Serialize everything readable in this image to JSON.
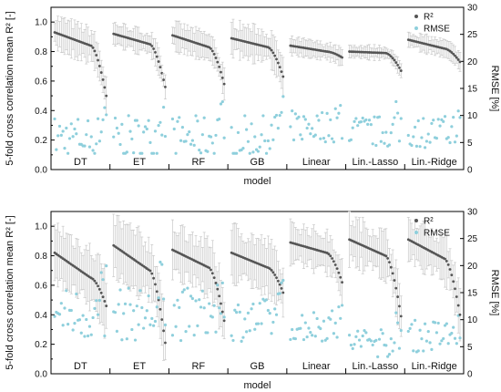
{
  "chart_data": [
    {
      "type": "scatter",
      "panel": "top",
      "xlabel": "model",
      "ylabel_left": "5-fold cross correlation mean R² [-]",
      "ylabel_right": "RMSE [%]",
      "ylim_left": [
        0,
        1.1
      ],
      "ylim_right": [
        0,
        30
      ],
      "yticks_left": [
        "0.0",
        "0.2",
        "0.4",
        "0.6",
        "0.8",
        "1.0"
      ],
      "yticks_right": [
        "0",
        "5",
        "10",
        "15",
        "20",
        "25",
        "30"
      ],
      "categories": [
        "DT",
        "ET",
        "RF",
        "GB",
        "Linear",
        "Lin.-Lasso",
        "Lin.-Ridge"
      ],
      "legend": [
        {
          "name": "R²",
          "color": "#555555"
        },
        {
          "name": "RMSE",
          "color": "#8ecfdc"
        }
      ],
      "legend_position": "top-right",
      "groups": [
        {
          "label": "DT",
          "r2_start": 0.93,
          "r2_mid": 0.84,
          "r2_end": 0.5,
          "err": 0.1,
          "rmse_mid": 6,
          "rmse_spread": 4
        },
        {
          "label": "ET",
          "r2_start": 0.92,
          "r2_mid": 0.85,
          "r2_end": 0.56,
          "err": 0.07,
          "rmse_mid": 6,
          "rmse_spread": 4
        },
        {
          "label": "RF",
          "r2_start": 0.91,
          "r2_mid": 0.83,
          "r2_end": 0.58,
          "err": 0.08,
          "rmse_mid": 6,
          "rmse_spread": 4
        },
        {
          "label": "GB",
          "r2_start": 0.89,
          "r2_mid": 0.83,
          "r2_end": 0.63,
          "err": 0.1,
          "rmse_mid": 6,
          "rmse_spread": 4
        },
        {
          "label": "Linear",
          "r2_start": 0.84,
          "r2_mid": 0.8,
          "r2_end": 0.76,
          "err": 0.05,
          "rmse_mid": 8,
          "rmse_spread": 3
        },
        {
          "label": "Lin.-Lasso",
          "r2_start": 0.8,
          "r2_mid": 0.79,
          "r2_end": 0.67,
          "err": 0.04,
          "rmse_mid": 7,
          "rmse_spread": 3
        },
        {
          "label": "Lin.-Ridge",
          "r2_start": 0.88,
          "r2_mid": 0.82,
          "r2_end": 0.73,
          "err": 0.05,
          "rmse_mid": 7,
          "rmse_spread": 3
        }
      ]
    },
    {
      "type": "scatter",
      "panel": "bottom",
      "xlabel": "model",
      "ylabel_left": "5-fold cross correlation mean R² [-]",
      "ylabel_right": "RMSE [%]",
      "ylim_left": [
        0,
        1.1
      ],
      "ylim_right": [
        0,
        30
      ],
      "yticks_left": [
        "0.0",
        "0.2",
        "0.4",
        "0.6",
        "0.8",
        "1.0"
      ],
      "yticks_right": [
        "0",
        "5",
        "10",
        "15",
        "20",
        "25",
        "30"
      ],
      "categories": [
        "DT",
        "ET",
        "RF",
        "GB",
        "Linear",
        "Lin.-Lasso",
        "Lin.-Ridge"
      ],
      "legend": [
        {
          "name": "R²",
          "color": "#555555"
        },
        {
          "name": "RMSE",
          "color": "#8ecfdc"
        }
      ],
      "legend_position": "top-right",
      "groups": [
        {
          "label": "DT",
          "r2_start": 0.82,
          "r2_mid": 0.65,
          "r2_end": 0.46,
          "err": 0.18,
          "rmse_mid": 11,
          "rmse_spread": 5
        },
        {
          "label": "ET",
          "r2_start": 0.87,
          "r2_mid": 0.7,
          "r2_end": 0.21,
          "err": 0.18,
          "rmse_mid": 11,
          "rmse_spread": 5
        },
        {
          "label": "RF",
          "r2_start": 0.84,
          "r2_mid": 0.72,
          "r2_end": 0.36,
          "err": 0.16,
          "rmse_mid": 11,
          "rmse_spread": 5
        },
        {
          "label": "GB",
          "r2_start": 0.82,
          "r2_mid": 0.72,
          "r2_end": 0.55,
          "err": 0.16,
          "rmse_mid": 10,
          "rmse_spread": 4
        },
        {
          "label": "Linear",
          "r2_start": 0.89,
          "r2_mid": 0.82,
          "r2_end": 0.62,
          "err": 0.12,
          "rmse_mid": 9,
          "rmse_spread": 3
        },
        {
          "label": "Lin.-Lasso",
          "r2_start": 0.91,
          "r2_mid": 0.8,
          "r2_end": 0.39,
          "err": 0.14,
          "rmse_mid": 6,
          "rmse_spread": 3
        },
        {
          "label": "Lin.-Ridge",
          "r2_start": 0.91,
          "r2_mid": 0.78,
          "r2_end": 0.4,
          "err": 0.14,
          "rmse_mid": 7,
          "rmse_spread": 3
        }
      ]
    }
  ]
}
